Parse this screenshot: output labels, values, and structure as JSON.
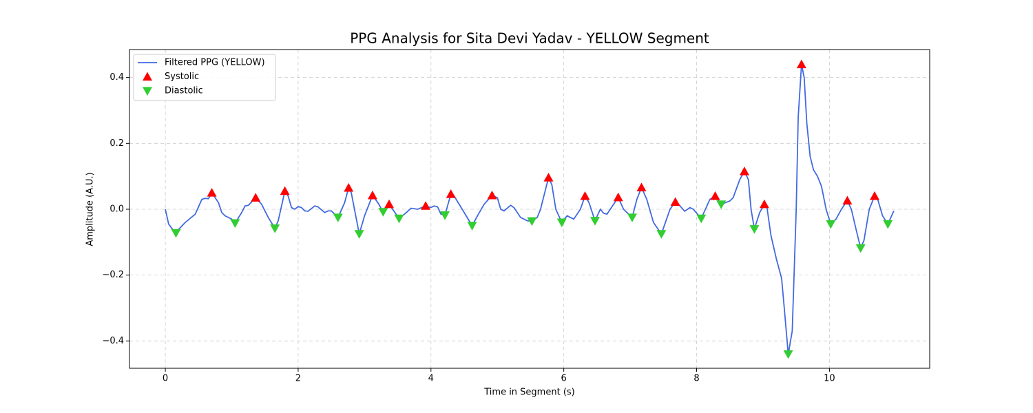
{
  "chart_data": {
    "type": "line",
    "title": "PPG Analysis for Sita Devi Yadav - YELLOW Segment",
    "xlabel": "Time in Segment (s)",
    "ylabel": "Amplitude (A.U.)",
    "xlim": [
      -0.54,
      11.51
    ],
    "ylim": [
      -0.483,
      0.485
    ],
    "xticks": [
      0,
      2,
      4,
      6,
      8,
      10
    ],
    "yticks": [
      {
        "value": -0.4,
        "label": "−0.4"
      },
      {
        "value": -0.2,
        "label": "−0.2"
      },
      {
        "value": 0,
        "label": "0.0"
      },
      0.2,
      0.4
    ],
    "grid": true,
    "legend": "upper left",
    "series": [
      {
        "name": "Filtered PPG (YELLOW)",
        "color": "#4169e1",
        "marker": "line",
        "x": [
          0,
          0.05,
          0.15,
          0.3,
          0.45,
          0.55,
          0.6,
          0.65,
          0.7,
          0.8,
          0.85,
          0.9,
          1.0,
          1.05,
          1.15,
          1.2,
          1.25,
          1.36,
          1.45,
          1.55,
          1.65,
          1.7,
          1.75,
          1.8,
          1.85,
          1.9,
          1.95,
          2.0,
          2.05,
          2.1,
          2.15,
          2.25,
          2.3,
          2.4,
          2.45,
          2.5,
          2.6,
          2.7,
          2.76,
          2.8,
          2.92,
          3.0,
          3.12,
          3.2,
          3.28,
          3.37,
          3.52,
          3.6,
          3.7,
          3.8,
          3.92,
          4.0,
          4.05,
          4.1,
          4.15,
          4.21,
          4.3,
          4.35,
          4.5,
          4.62,
          4.7,
          4.8,
          4.92,
          5.0,
          5.05,
          5.1,
          5.2,
          5.25,
          5.35,
          5.45,
          5.52,
          5.6,
          5.65,
          5.77,
          5.82,
          5.88,
          5.97,
          6.05,
          6.15,
          6.25,
          6.32,
          6.38,
          6.47,
          6.55,
          6.6,
          6.65,
          6.82,
          6.9,
          7.03,
          7.1,
          7.17,
          7.25,
          7.35,
          7.47,
          7.6,
          7.68,
          7.75,
          7.82,
          7.9,
          7.95,
          8.07,
          8.2,
          8.28,
          8.37,
          8.5,
          8.55,
          8.65,
          8.72,
          8.78,
          8.82,
          8.87,
          8.95,
          9.02,
          9.06,
          9.12,
          9.2,
          9.28,
          9.32,
          9.38,
          9.44,
          9.5,
          9.53,
          9.58,
          9.62,
          9.66,
          9.71,
          9.76,
          9.82,
          9.88,
          9.95,
          10.02,
          10.1,
          10.18,
          10.27,
          10.33,
          10.4,
          10.47,
          10.52,
          10.6,
          10.68,
          10.72,
          10.8,
          10.88,
          10.97
        ],
        "values": [
          0,
          -0.045,
          -0.072,
          -0.04,
          -0.015,
          0.03,
          0.033,
          0.032,
          0.05,
          0.02,
          -0.01,
          -0.02,
          -0.03,
          -0.042,
          -0.01,
          0.01,
          0.012,
          0.035,
          0.015,
          -0.025,
          -0.058,
          -0.035,
          0.01,
          0.055,
          0.04,
          0.005,
          0,
          0.008,
          0.005,
          -0.005,
          -0.006,
          0.01,
          0.007,
          -0.01,
          -0.005,
          -0.005,
          -0.025,
          0.02,
          0.065,
          0.05,
          -0.075,
          -0.02,
          0.042,
          0.02,
          -0.008,
          0.015,
          -0.028,
          -0.015,
          0.003,
          0,
          0.01,
          0.005,
          0.01,
          0.007,
          -0.015,
          -0.018,
          0.046,
          0.04,
          -0.01,
          -0.05,
          -0.02,
          0.015,
          0.042,
          0.035,
          0,
          -0.005,
          0.012,
          0.005,
          -0.025,
          -0.035,
          -0.036,
          -0.025,
          0,
          0.096,
          0.075,
          0,
          -0.04,
          -0.02,
          -0.03,
          0,
          0.04,
          0.02,
          -0.035,
          0,
          -0.012,
          -0.015,
          0.036,
          0,
          -0.025,
          0.03,
          0.066,
          0.03,
          -0.04,
          -0.075,
          0,
          0.022,
          0.01,
          -0.006,
          0.005,
          0,
          -0.028,
          0.03,
          0.04,
          0.015,
          0.025,
          0.035,
          0.09,
          0.115,
          0.09,
          0,
          -0.06,
          -0.01,
          0.015,
          0.005,
          -0.08,
          -0.15,
          -0.21,
          -0.3,
          -0.44,
          -0.37,
          0,
          0.28,
          0.44,
          0.4,
          0.26,
          0.16,
          0.12,
          0.1,
          0.07,
          0,
          -0.045,
          -0.03,
          0,
          0.026,
          0,
          -0.06,
          -0.118,
          -0.095,
          0,
          0.04,
          0.035,
          -0.02,
          -0.045,
          -0.005
        ]
      },
      {
        "name": "Systolic",
        "color": "#ff0000",
        "marker": "triangle-up",
        "x": [
          0.7,
          1.36,
          1.8,
          2.76,
          3.12,
          3.37,
          3.92,
          4.3,
          4.92,
          5.77,
          6.32,
          6.82,
          7.17,
          7.68,
          8.28,
          8.72,
          9.02,
          9.58,
          10.27,
          10.68
        ],
        "values": [
          0.05,
          0.035,
          0.055,
          0.065,
          0.042,
          0.015,
          0.01,
          0.046,
          0.042,
          0.096,
          0.04,
          0.036,
          0.066,
          0.022,
          0.04,
          0.115,
          0.015,
          0.44,
          0.026,
          0.04
        ]
      },
      {
        "name": "Diastolic",
        "color": "#32cd32",
        "marker": "triangle-down",
        "x": [
          0.16,
          1.05,
          1.65,
          2.6,
          2.92,
          3.28,
          3.52,
          4.21,
          4.62,
          5.52,
          5.97,
          6.47,
          7.03,
          7.47,
          8.07,
          8.37,
          8.87,
          9.38,
          10.02,
          10.47,
          10.88
        ],
        "values": [
          -0.072,
          -0.042,
          -0.058,
          -0.025,
          -0.075,
          -0.008,
          -0.028,
          -0.018,
          -0.05,
          -0.036,
          -0.04,
          -0.035,
          -0.025,
          -0.075,
          -0.028,
          0.015,
          -0.06,
          -0.44,
          -0.045,
          -0.118,
          -0.045
        ]
      }
    ]
  }
}
